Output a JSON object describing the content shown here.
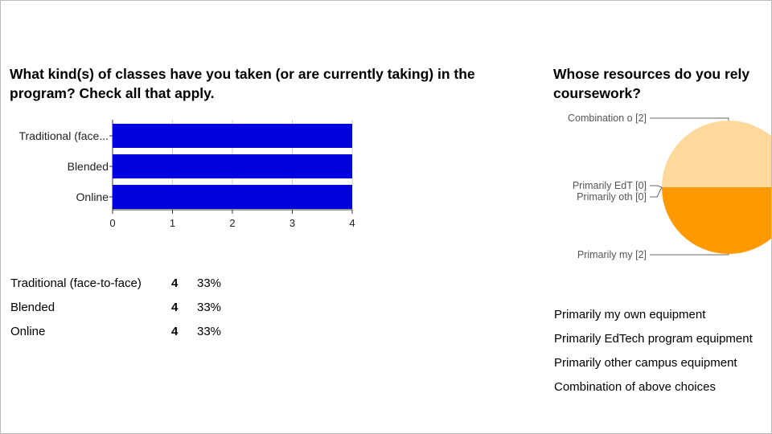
{
  "questions": [
    {
      "title": "What kind(s) of classes have you taken (or are currently taking) in the program? Check all that apply.",
      "summary": [
        {
          "label": "Traditional (face-to-face)",
          "count": "4",
          "percent": "33%"
        },
        {
          "label": "Blended",
          "count": "4",
          "percent": "33%"
        },
        {
          "label": "Online",
          "count": "4",
          "percent": "33%"
        }
      ]
    },
    {
      "title": "Whose resources do you rely on for your coursework?",
      "title_visible": "Whose resources do you rely",
      "title_line2": "coursework?",
      "options": [
        "Primarily my own equipment",
        "Primarily EdTech program equipment",
        "Primarily other campus equipment",
        "Combination of above choices"
      ]
    }
  ],
  "chart_data": [
    {
      "type": "bar",
      "orientation": "horizontal",
      "categories": [
        "Traditional (face...",
        "Blended",
        "Online"
      ],
      "values": [
        4,
        4,
        4
      ],
      "xlim": [
        0,
        4
      ],
      "xticks": [
        "0",
        "1",
        "2",
        "3",
        "4"
      ],
      "colors": [
        "#0000dd"
      ]
    },
    {
      "type": "pie",
      "slices": [
        {
          "label": "Combination o [2]",
          "value": 2,
          "color": "#ffd99c"
        },
        {
          "label": "Primarily EdT [0]",
          "value": 0,
          "color": "#ff9900"
        },
        {
          "label": "Primarily oth [0]",
          "value": 0,
          "color": "#ff9900"
        },
        {
          "label": "Primarily my  [2]",
          "value": 2,
          "color": "#ff9900"
        }
      ],
      "leader_color": "#666666",
      "label_color": "#555555"
    }
  ]
}
